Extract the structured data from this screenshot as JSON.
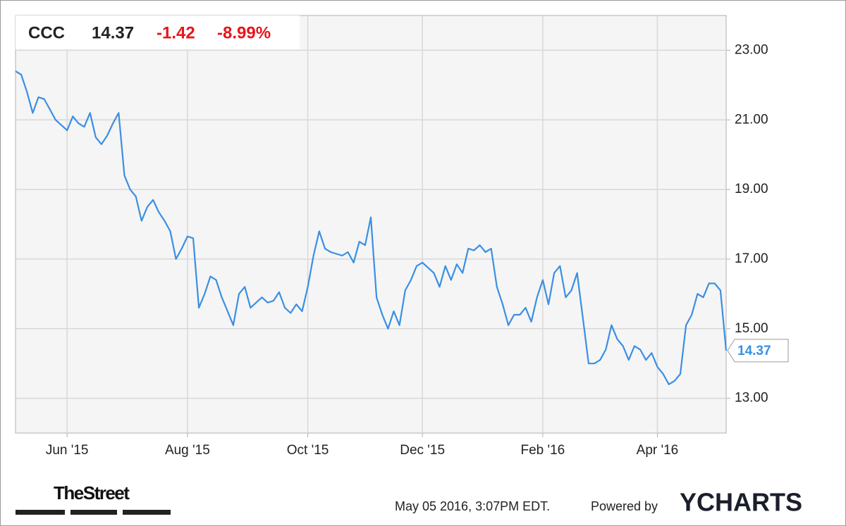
{
  "chart_data": {
    "type": "line",
    "header": {
      "symbol": "CCC",
      "change": "-1.42",
      "change_percent": "-8.99%"
    },
    "categories": [
      null,
      null,
      null,
      null,
      null,
      null,
      null,
      null,
      null,
      "Jun '15",
      null,
      null,
      null,
      null,
      null,
      null,
      null,
      null,
      null,
      null,
      null,
      null,
      null,
      null,
      null,
      null,
      null,
      null,
      null,
      null,
      "Aug '15",
      null,
      null,
      null,
      null,
      null,
      null,
      null,
      null,
      null,
      null,
      null,
      null,
      null,
      null,
      null,
      null,
      null,
      null,
      null,
      null,
      "Oct '15",
      null,
      null,
      null,
      null,
      null,
      null,
      null,
      null,
      null,
      null,
      null,
      null,
      null,
      null,
      null,
      null,
      null,
      null,
      null,
      "Dec '15",
      null,
      null,
      null,
      null,
      null,
      null,
      null,
      null,
      null,
      null,
      null,
      null,
      null,
      null,
      null,
      null,
      null,
      null,
      null,
      null,
      "Feb '16",
      null,
      null,
      null,
      null,
      null,
      null,
      null,
      null,
      null,
      null,
      null,
      null,
      null,
      null,
      null,
      null,
      null,
      null,
      null,
      "Apr '16",
      null,
      null,
      null,
      null,
      null,
      null,
      null,
      null,
      null,
      null,
      null,
      null
    ],
    "series": [
      {
        "name": "CCC",
        "color": "#3a8fe3",
        "values": [
          22.4,
          22.3,
          21.8,
          21.2,
          21.65,
          21.6,
          21.3,
          21.0,
          20.85,
          20.7,
          21.1,
          20.9,
          20.8,
          21.2,
          20.5,
          20.3,
          20.55,
          20.9,
          21.2,
          19.4,
          19.0,
          18.8,
          18.1,
          18.5,
          18.7,
          18.35,
          18.1,
          17.8,
          17.0,
          17.3,
          17.65,
          17.6,
          15.6,
          16.0,
          16.5,
          16.4,
          15.9,
          15.5,
          15.1,
          16.0,
          16.2,
          15.6,
          15.75,
          15.9,
          15.75,
          15.8,
          16.05,
          15.6,
          15.45,
          15.7,
          15.5,
          16.2,
          17.1,
          17.8,
          17.3,
          17.2,
          17.15,
          17.1,
          17.2,
          16.9,
          17.5,
          17.4,
          18.2,
          15.9,
          15.4,
          15.0,
          15.5,
          15.1,
          16.1,
          16.4,
          16.8,
          16.9,
          16.75,
          16.6,
          16.2,
          16.8,
          16.4,
          16.85,
          16.6,
          17.3,
          17.25,
          17.4,
          17.2,
          17.3,
          16.2,
          15.7,
          15.1,
          15.4,
          15.4,
          15.6,
          15.2,
          15.9,
          16.4,
          15.7,
          16.6,
          16.8,
          15.9,
          16.1,
          16.6,
          15.3,
          14.0,
          14.0,
          14.1,
          14.4,
          15.1,
          14.7,
          14.5,
          14.1,
          14.5,
          14.4,
          14.1,
          14.3,
          13.9,
          13.7,
          13.4,
          13.5,
          13.7,
          15.1,
          15.4,
          16.0,
          15.9,
          16.3,
          16.3,
          16.1,
          14.37
        ]
      }
    ],
    "ylim": [
      12,
      24
    ],
    "yticks": [
      {
        "value": 13,
        "label": "13.00"
      },
      {
        "value": 15,
        "label": "15.00"
      },
      {
        "value": 17,
        "label": "17.00"
      },
      {
        "value": 19,
        "label": "19.00"
      },
      {
        "value": 21,
        "label": "21.00"
      },
      {
        "value": 23,
        "label": "23.00"
      }
    ],
    "grid": true,
    "footer": {
      "brand": "TheStreet",
      "timestamp": "May 05 2016, 3:07PM EDT.",
      "powered_by": "Powered by",
      "provider": "YCHARTS"
    }
  }
}
